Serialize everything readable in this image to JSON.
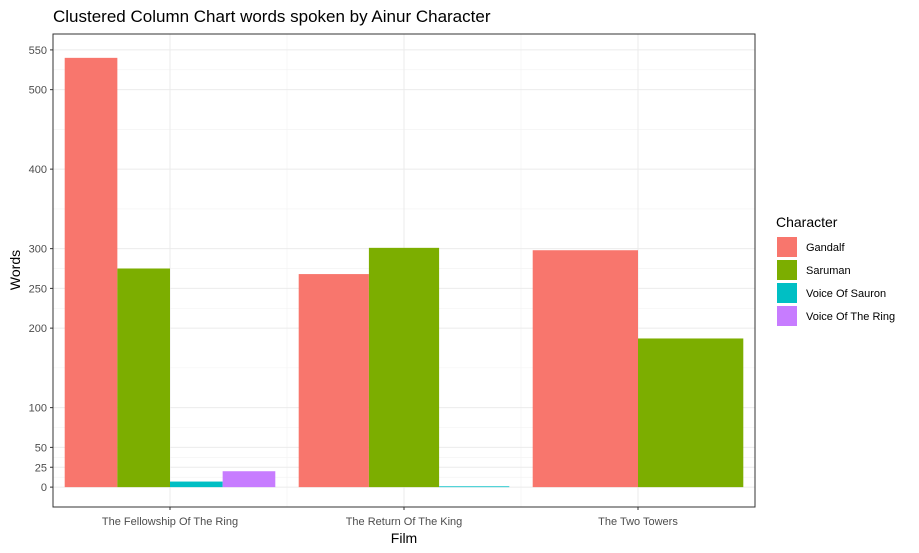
{
  "chart_data": {
    "type": "bar",
    "title": "Clustered Column Chart words spoken by Ainur Character",
    "xlabel": "Film",
    "ylabel": "Words",
    "categories": [
      "The Fellowship Of The Ring",
      "The Return Of The King",
      "The Two Towers"
    ],
    "yticks": [
      0,
      25,
      50,
      100,
      200,
      250,
      300,
      400,
      500,
      550
    ],
    "ylim": [
      -25,
      570
    ],
    "grid": true,
    "legend": {
      "title": "Character",
      "placement": "right"
    },
    "series": [
      {
        "name": "Gandalf",
        "color": "#F8766D",
        "values": [
          540,
          268,
          298
        ]
      },
      {
        "name": "Saruman",
        "color": "#7CAE00",
        "values": [
          275,
          301,
          187
        ]
      },
      {
        "name": "Voice Of Sauron",
        "color": "#00BFC4",
        "values": [
          7,
          1,
          null
        ]
      },
      {
        "name": "Voice Of The Ring",
        "color": "#C77CFF",
        "values": [
          20,
          null,
          null
        ]
      }
    ]
  }
}
